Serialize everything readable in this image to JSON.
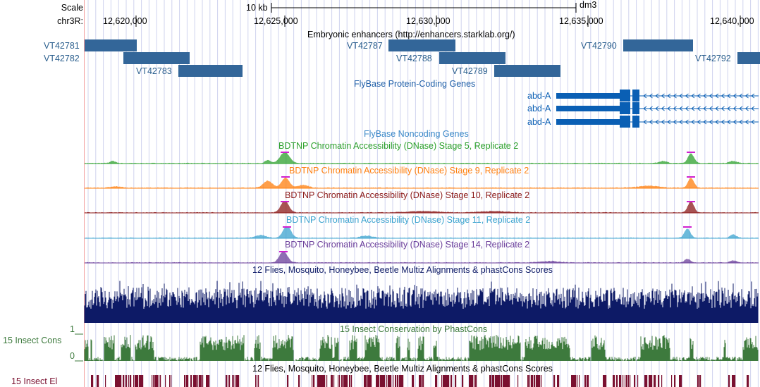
{
  "header": {
    "scale_label": "Scale",
    "scale_bar_label": "10 kb",
    "assembly": "dm3",
    "chrom_label": "chr3R:",
    "positions": [
      "12,620,000",
      "12,625,000",
      "12,630,000",
      "12,635,000",
      "12,640,000"
    ]
  },
  "tracks": {
    "enhancers_title": "Embryonic enhancers (http://enhancers.starklab.org/)",
    "enhancers": [
      {
        "name": "VT42781"
      },
      {
        "name": "VT42782"
      },
      {
        "name": "VT42783"
      },
      {
        "name": "VT42787"
      },
      {
        "name": "VT42788"
      },
      {
        "name": "VT42789"
      },
      {
        "name": "VT42790"
      },
      {
        "name": "VT42792"
      }
    ],
    "protein_coding_title": "FlyBase Protein-Coding Genes",
    "genes": [
      "abd-A",
      "abd-A",
      "abd-A"
    ],
    "noncoding_title": "FlyBase Noncoding Genes",
    "dnase": [
      {
        "title": "BDTNP Chromatin Accessibility (DNase) Stage 5, Replicate 2",
        "color": "#2ca02c"
      },
      {
        "title": "BDTNP Chromatin Accessibility (DNase) Stage 9, Replicate 2",
        "color": "#ff7f0e"
      },
      {
        "title": "BDTNP Chromatin Accessibility (DNase) Stage 10, Replicate 2",
        "color": "#8b1a1a"
      },
      {
        "title": "BDTNP Chromatin Accessibility (DNase) Stage 11, Replicate 2",
        "color": "#3ba3cf"
      },
      {
        "title": "BDTNP Chromatin Accessibility (DNase) Stage 14, Replicate 2",
        "color": "#6a3d9a"
      }
    ],
    "multiz_title": "12 Flies, Mosquito, Honeybee, Beetle Multiz Alignments & phastCons Scores",
    "phastcons_title": "15 Insect Conservation by PhastCons",
    "cons_label": "15 Insect Cons",
    "cons_max": "1",
    "cons_min": "0",
    "multiz_title_2": "12 Flies, Mosquito, Honeybee, Beetle Multiz Alignments & phastCons Scores",
    "elements_label": "15 Insect El"
  },
  "colors": {
    "enhancer": "#336699",
    "gene": "#0a5fb4",
    "multiz": "#0d1a66",
    "cons": "#3d7a3d",
    "elements": "#7a1030",
    "grid": "#cfd3ee",
    "left_border": "#f2a0a0"
  }
}
